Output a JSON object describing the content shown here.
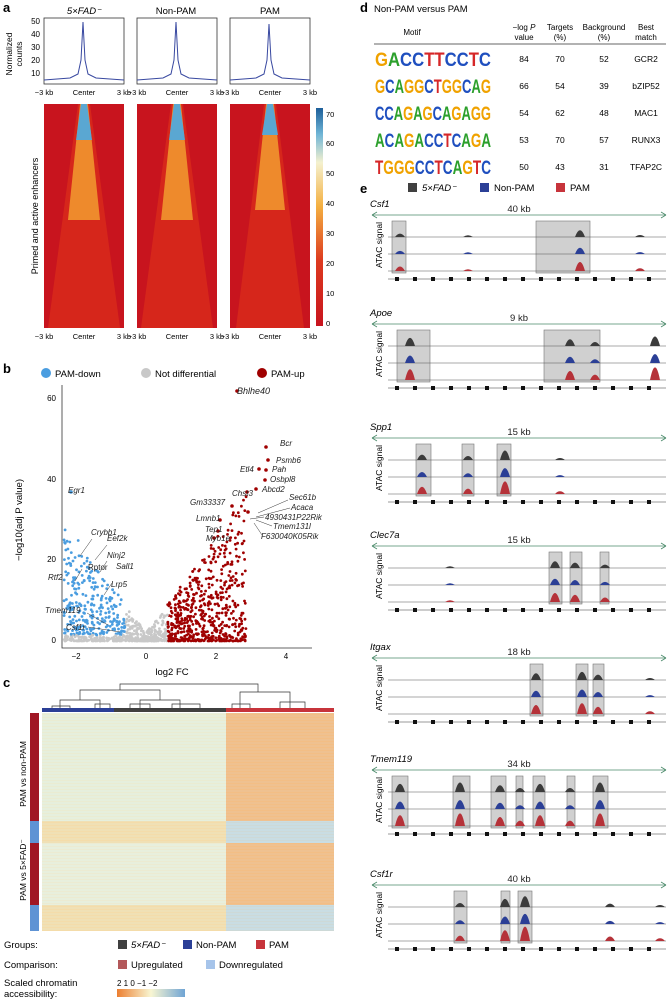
{
  "panel_labels": {
    "a": "a",
    "b": "b",
    "c": "c",
    "d": "d",
    "e": "e"
  },
  "panel_a": {
    "columns": [
      "5×FAD⁻",
      "Non-PAM",
      "PAM"
    ],
    "profile_ylabel": [
      "Normalized",
      "counts"
    ],
    "profile_yticks": [
      "50",
      "40",
      "30",
      "20",
      "10"
    ],
    "x_ticks": [
      "−3 kb",
      "Center",
      "3 kb"
    ],
    "heatmap_ylabel": "Primed and active enhancers",
    "colorbar_ticks": [
      "70",
      "60",
      "50",
      "40",
      "30",
      "20",
      "10",
      "0"
    ]
  },
  "panel_b": {
    "legend": [
      "PAM-down",
      "Not differential",
      "PAM-up"
    ],
    "colors": {
      "down": "#4a9de0",
      "nd": "#c8c8c8",
      "up": "#a00000"
    },
    "ylabel": "−log10(adj P value)",
    "xlabel": "log2 FC",
    "gene_labels": [
      "Bhlhe40",
      "Bcr",
      "Psmb6",
      "Etl4",
      "Pah",
      "Osbpl8",
      "Abcd2",
      "Chst3",
      "Sec61b",
      "Gm33337",
      "Acaca",
      "4930431P22Rik",
      "Tmem131l",
      "Lmnb1",
      "Tep1",
      "F630040K05Rik",
      "Myo1e",
      "Egr1",
      "Crybb1",
      "Eef2k",
      "Ninj2",
      "Rptor",
      "Sall1",
      "Rtf2",
      "Lrp5",
      "Tmem119",
      "Csf1r"
    ]
  },
  "panel_c": {
    "row_labels": [
      "PAM vs non-PAM",
      "PAM vs 5×FAD⁻"
    ],
    "legend": {
      "groups_title": "Groups:",
      "groups": [
        "5×FAD⁻",
        "Non-PAM",
        "PAM"
      ],
      "comparison_title": "Comparison:",
      "comparison": [
        "Upregulated",
        "Downregulated"
      ],
      "scale_title": [
        "Scaled chromatin",
        "accessibility:"
      ],
      "scale_ticks": "2  1  0 −1 −2"
    }
  },
  "panel_d": {
    "title": "Non-PAM versus PAM",
    "headers": [
      "Motif",
      "−log P value",
      "Targets (%)",
      "Background (%)",
      "Best match"
    ],
    "rows": [
      {
        "motif": "GACCTTCCTC",
        "logp": "84",
        "targets": "70",
        "background": "52",
        "match": "GCR2"
      },
      {
        "motif": "GCAGGCTGGCAG",
        "logp": "66",
        "targets": "54",
        "background": "39",
        "match": "bZIP52"
      },
      {
        "motif": "CCAGAGCAGAGG",
        "logp": "54",
        "targets": "62",
        "background": "48",
        "match": "MAC1"
      },
      {
        "motif": "ACAGACCTCAGA",
        "logp": "53",
        "targets": "70",
        "background": "57",
        "match": "RUNX3"
      },
      {
        "motif": "TGGGCCTCAGTC",
        "logp": "50",
        "targets": "43",
        "background": "31",
        "match": "TFAP2C"
      }
    ]
  },
  "panel_e": {
    "legend": [
      "5×FAD⁻",
      "Non-PAM",
      "PAM"
    ],
    "ylabel": "ATAC signal",
    "tracks": [
      {
        "gene": "Csf1",
        "span": "40 kb"
      },
      {
        "gene": "Apoe",
        "span": "9 kb"
      },
      {
        "gene": "Spp1",
        "span": "15 kb"
      },
      {
        "gene": "Clec7a",
        "span": "15 kb"
      },
      {
        "gene": "Itgax",
        "span": "18 kb"
      },
      {
        "gene": "Tmem119",
        "span": "34 kb"
      },
      {
        "gene": "Csf1r",
        "span": "40 kb"
      }
    ]
  }
}
